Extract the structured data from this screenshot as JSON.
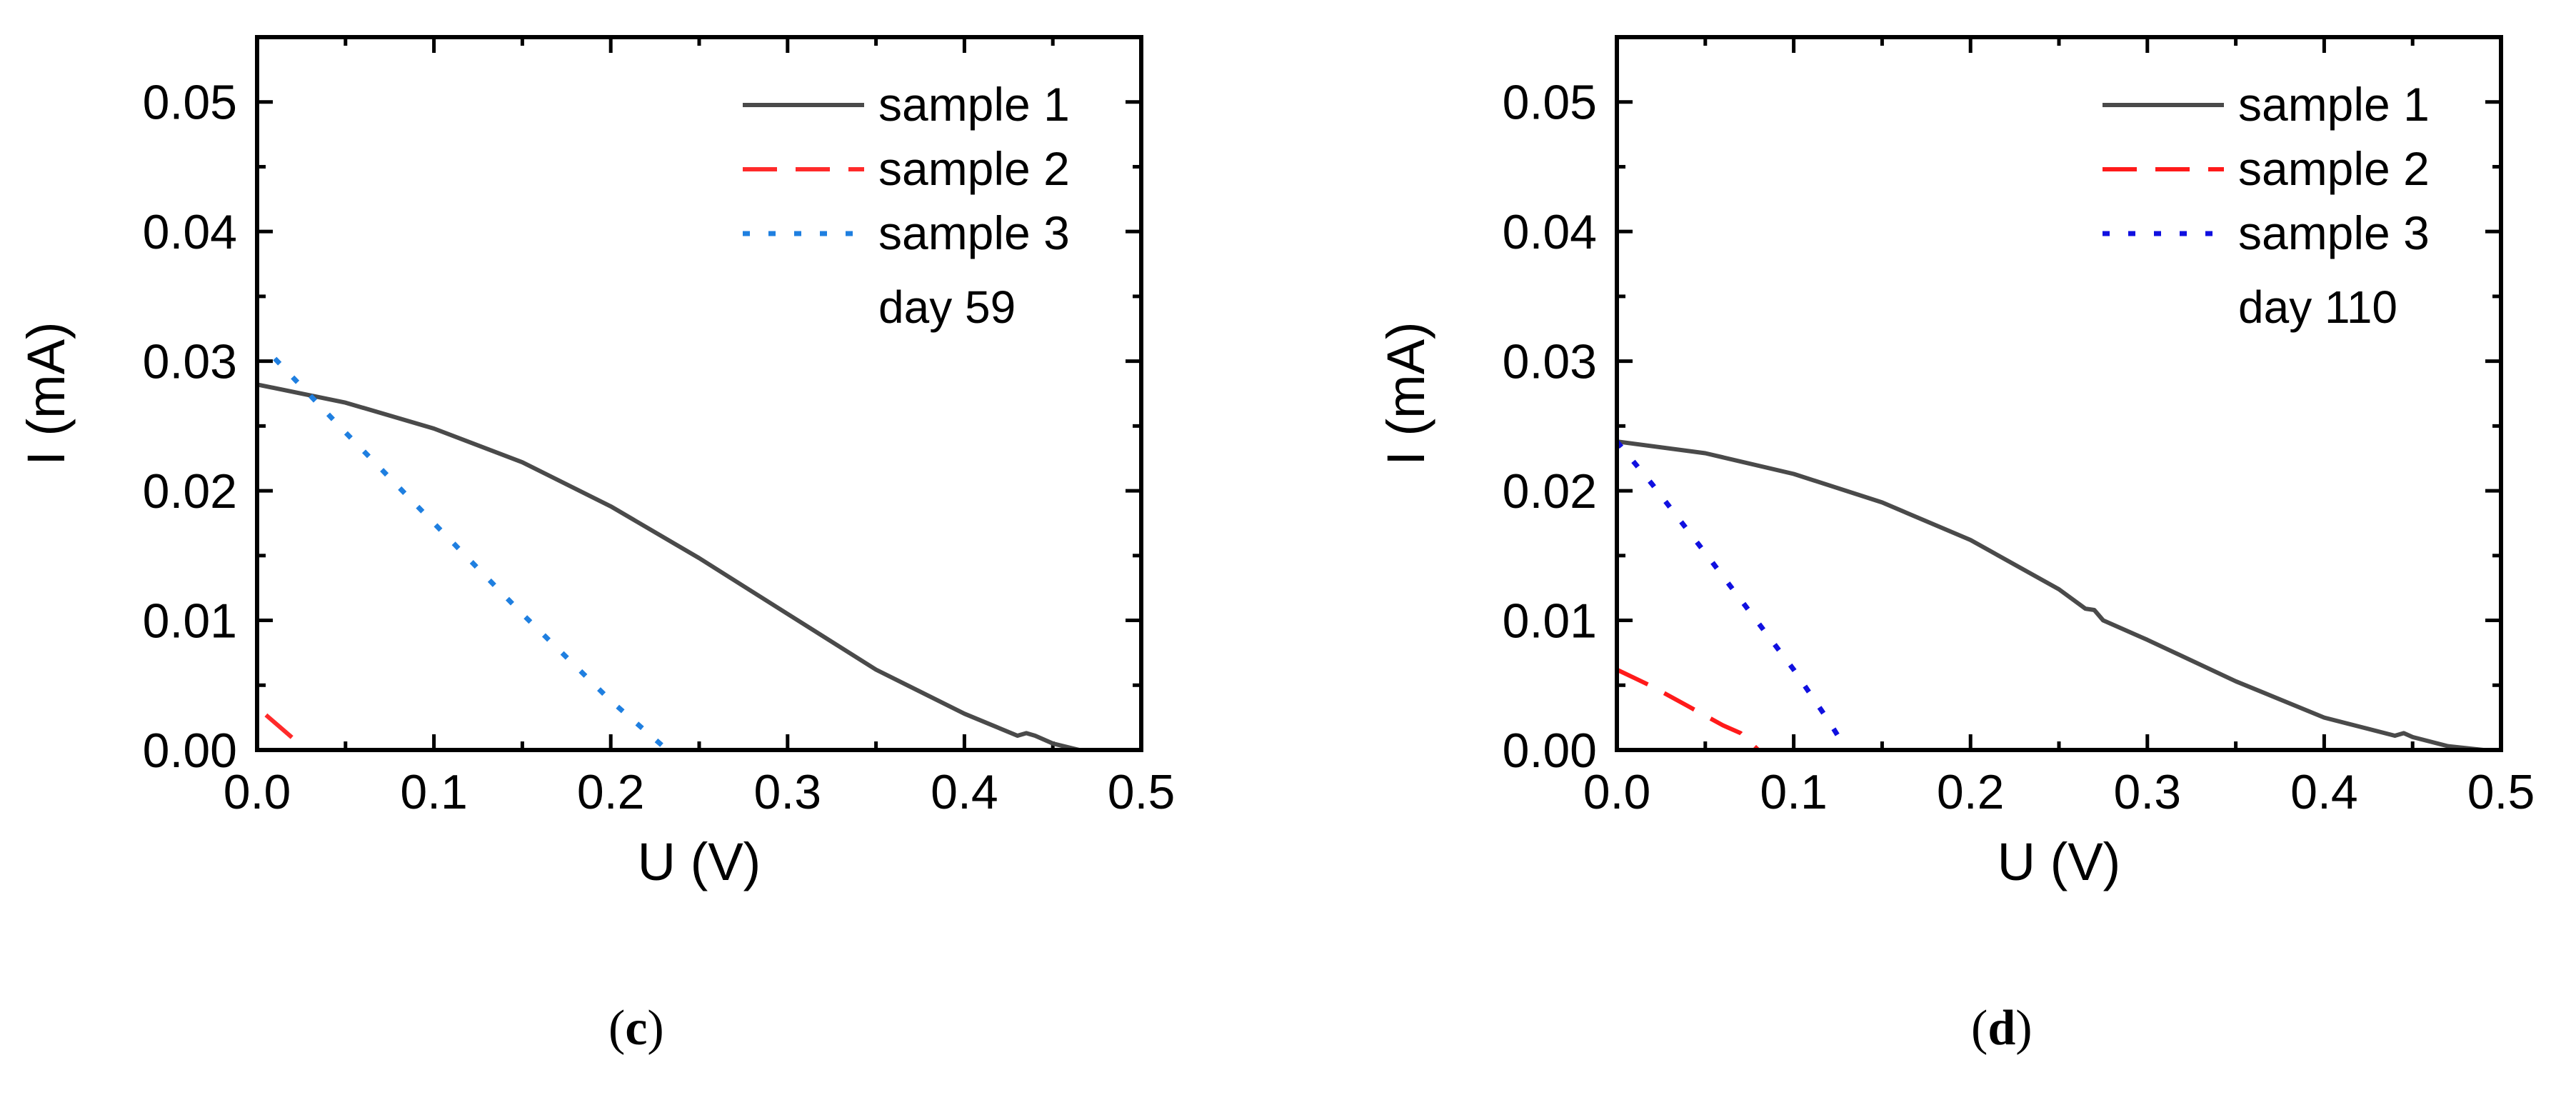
{
  "chart_data": [
    {
      "type": "line",
      "panel": "c",
      "xlabel": "U (V)",
      "ylabel": "I (mA)",
      "xlim": [
        0.0,
        0.5
      ],
      "ylim": [
        0.0,
        0.055
      ],
      "xticks": [
        "0.0",
        "0.1",
        "0.2",
        "0.3",
        "0.4",
        "0.5"
      ],
      "xtick_values": [
        0.0,
        0.1,
        0.2,
        0.3,
        0.4,
        0.5
      ],
      "yticks": [
        "0.00",
        "0.01",
        "0.02",
        "0.03",
        "0.04",
        "0.05"
      ],
      "ytick_values": [
        0.0,
        0.01,
        0.02,
        0.03,
        0.04,
        0.05
      ],
      "annotation": "day 59",
      "legend_position": "top-right",
      "series": [
        {
          "name": "sample 1",
          "color": "#4a4a4a",
          "style": "solid",
          "x": [
            0.0,
            0.05,
            0.1,
            0.15,
            0.2,
            0.25,
            0.3,
            0.35,
            0.4,
            0.43,
            0.435,
            0.44,
            0.45,
            0.465
          ],
          "y": [
            0.0282,
            0.0268,
            0.0248,
            0.0222,
            0.0188,
            0.0148,
            0.0105,
            0.0062,
            0.0028,
            0.0011,
            0.0013,
            0.0011,
            0.0005,
            0.0
          ]
        },
        {
          "name": "sample 2",
          "color": "#ff2a2a",
          "style": "dashed",
          "x": [
            0.005,
            0.022
          ],
          "y": [
            0.0027,
            0.0007
          ]
        },
        {
          "name": "sample 3",
          "color": "#1f7fe0",
          "style": "dotted",
          "x": [
            0.01,
            0.05,
            0.1,
            0.15,
            0.2,
            0.232
          ],
          "y": [
            0.0302,
            0.0245,
            0.0175,
            0.0105,
            0.0038,
            0.0
          ]
        }
      ]
    },
    {
      "type": "line",
      "panel": "d",
      "xlabel": "U (V)",
      "ylabel": "I (mA)",
      "xlim": [
        0.0,
        0.5
      ],
      "ylim": [
        0.0,
        0.055
      ],
      "xticks": [
        "0.0",
        "0.1",
        "0.2",
        "0.3",
        "0.4",
        "0.5"
      ],
      "xtick_values": [
        0.0,
        0.1,
        0.2,
        0.3,
        0.4,
        0.5
      ],
      "yticks": [
        "0.00",
        "0.01",
        "0.02",
        "0.03",
        "0.04",
        "0.05"
      ],
      "ytick_values": [
        0.0,
        0.01,
        0.02,
        0.03,
        0.04,
        0.05
      ],
      "annotation": "day 110",
      "legend_position": "top-right",
      "series": [
        {
          "name": "sample 1",
          "color": "#4a4a4a",
          "style": "solid",
          "x": [
            0.0,
            0.05,
            0.1,
            0.15,
            0.2,
            0.25,
            0.265,
            0.27,
            0.275,
            0.3,
            0.35,
            0.4,
            0.44,
            0.445,
            0.45,
            0.47,
            0.49
          ],
          "y": [
            0.0238,
            0.0229,
            0.0213,
            0.0191,
            0.0162,
            0.0124,
            0.0109,
            0.0108,
            0.01,
            0.0085,
            0.0053,
            0.0025,
            0.0011,
            0.0013,
            0.001,
            0.0003,
            0.0
          ]
        },
        {
          "name": "sample 2",
          "color": "#ff1a1a",
          "style": "dashed",
          "x": [
            0.0,
            0.02,
            0.04,
            0.06,
            0.07,
            0.08
          ],
          "y": [
            0.0062,
            0.0049,
            0.0034,
            0.0019,
            0.0013,
            0.0
          ]
        },
        {
          "name": "sample 3",
          "color": "#1010e0",
          "style": "dotted",
          "x": [
            0.0,
            0.02,
            0.05,
            0.08,
            0.1,
            0.12,
            0.13
          ],
          "y": [
            0.0238,
            0.0205,
            0.0152,
            0.0098,
            0.0062,
            0.0022,
            0.0
          ]
        }
      ]
    }
  ],
  "panel_labels": [
    "c",
    "d"
  ]
}
